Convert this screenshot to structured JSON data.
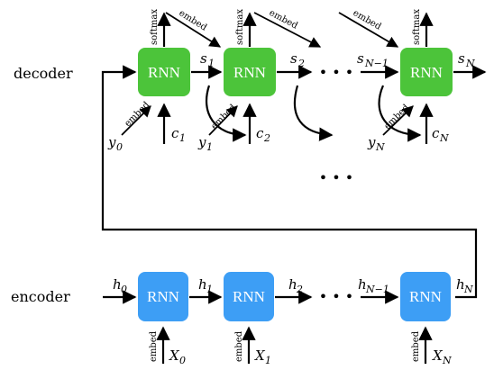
{
  "rows": {
    "decoder_label": "decoder",
    "encoder_label": "encoder"
  },
  "cell_label": "RNN",
  "colors": {
    "decoder_cell": "#4cc43a",
    "encoder_cell": "#3d9ef5",
    "ink": "#000000"
  },
  "decoder": {
    "state_labels": [
      {
        "base": "s",
        "sub": "1"
      },
      {
        "base": "s",
        "sub": "2"
      },
      {
        "base": "s",
        "sub": "N−1"
      },
      {
        "base": "s",
        "sub": "N"
      }
    ],
    "inputs_y": [
      {
        "base": "y",
        "sub": "0"
      },
      {
        "base": "y",
        "sub": "1"
      },
      {
        "base": "y",
        "sub": "N"
      }
    ],
    "inputs_c": [
      {
        "base": "c",
        "sub": "1"
      },
      {
        "base": "c",
        "sub": "2"
      },
      {
        "base": "c",
        "sub": "N"
      }
    ],
    "softmax_label": "softmax",
    "embed_label": "embed",
    "ellipsis": "• • •"
  },
  "encoder": {
    "state_labels": [
      {
        "base": "h",
        "sub": "0"
      },
      {
        "base": "h",
        "sub": "1"
      },
      {
        "base": "h",
        "sub": "2"
      },
      {
        "base": "h",
        "sub": "N−1"
      },
      {
        "base": "h",
        "sub": "N"
      }
    ],
    "inputs": [
      {
        "base": "X",
        "sub": "0"
      },
      {
        "base": "X",
        "sub": "1"
      },
      {
        "base": "X",
        "sub": "N"
      }
    ],
    "embed_label": "embed",
    "ellipsis": "• • •"
  }
}
